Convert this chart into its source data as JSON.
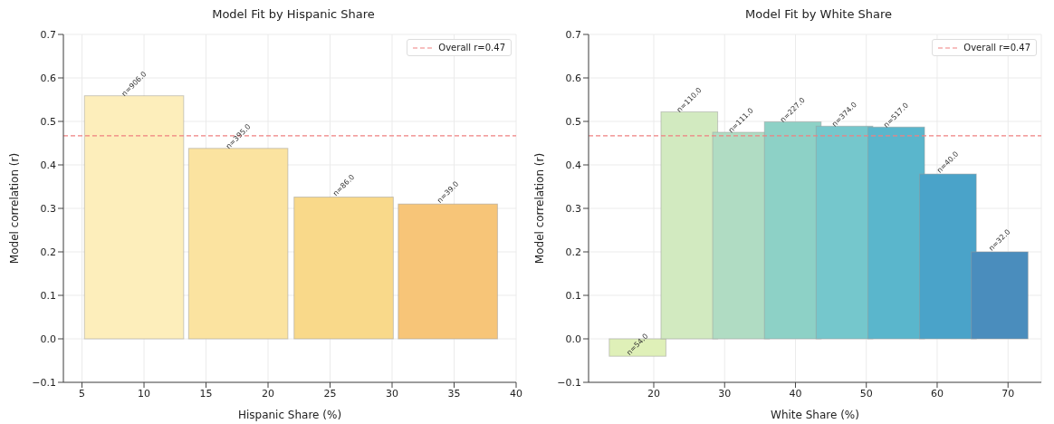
{
  "chart_data": [
    {
      "type": "bar",
      "title": "Model Fit by Hispanic Share",
      "xlabel": "Hispanic Share (%)",
      "ylabel": "Model correlation (r)",
      "x": [
        9.2,
        17.6,
        26.1,
        34.5
      ],
      "values": [
        0.559,
        0.438,
        0.326,
        0.31
      ],
      "colors": [
        "#fdeebb",
        "#fbe3a0",
        "#f9d98a",
        "#f7c578"
      ],
      "annotations": [
        {
          "text": "n=906.0",
          "x": 9.2,
          "y": 0.559
        },
        {
          "text": "n=395.0",
          "x": 17.6,
          "y": 0.438
        },
        {
          "text": "n=86.0",
          "x": 26.1,
          "y": 0.326
        },
        {
          "text": "n=39.0",
          "x": 34.5,
          "y": 0.31
        }
      ],
      "xlim": [
        3.5,
        40
      ],
      "xticks": [
        5,
        10,
        15,
        20,
        25,
        30,
        35,
        40
      ],
      "ylim": [
        -0.1,
        0.7
      ],
      "yticks": [
        {
          "value": -0.1,
          "label": "−0.1"
        },
        {
          "value": 0,
          "label": "0.0"
        },
        {
          "value": 0.1,
          "label": "0.1"
        },
        {
          "value": 0.2,
          "label": "0.2"
        },
        {
          "value": 0.3,
          "label": "0.3"
        },
        {
          "value": 0.4,
          "label": "0.4"
        },
        {
          "value": 0.5,
          "label": "0.5"
        },
        {
          "value": 0.6,
          "label": "0.6"
        },
        {
          "value": 0.7,
          "label": "0.7"
        }
      ],
      "ref_lines": [
        {
          "axis": "y",
          "value": 0.467,
          "label": "Overall r=0.47",
          "color": "#f08080",
          "line_style": "dashed"
        }
      ],
      "grid": true,
      "legend": "top right"
    },
    {
      "type": "bar",
      "title": "Model Fit by White Share",
      "xlabel": "White Share (%)",
      "ylabel": "Model correlation (r)",
      "x": [
        17.7,
        25.0,
        32.3,
        39.6,
        46.9,
        54.2,
        61.5,
        68.8
      ],
      "values": [
        -0.04,
        0.522,
        0.475,
        0.499,
        0.489,
        0.487,
        0.379,
        0.2
      ],
      "colors": [
        "#dff0b8",
        "#d2eac0",
        "#b0dcc3",
        "#8dd1c6",
        "#75c7cc",
        "#5ab6cc",
        "#4aa3c9",
        "#4a8dbd"
      ],
      "annotations": [
        {
          "text": "n=54.0",
          "x": 17.7,
          "y": -0.04
        },
        {
          "text": "n=110.0",
          "x": 25.0,
          "y": 0.522
        },
        {
          "text": "n=111.0",
          "x": 32.3,
          "y": 0.475
        },
        {
          "text": "n=227.0",
          "x": 39.6,
          "y": 0.499
        },
        {
          "text": "n=374.0",
          "x": 46.9,
          "y": 0.489
        },
        {
          "text": "n=517.0",
          "x": 54.2,
          "y": 0.487
        },
        {
          "text": "n=40.0",
          "x": 61.5,
          "y": 0.379
        },
        {
          "text": "n=32.0",
          "x": 68.8,
          "y": 0.2
        }
      ],
      "xlim": [
        10.8,
        74.7
      ],
      "xticks": [
        20,
        30,
        40,
        50,
        60,
        70
      ],
      "ylim": [
        -0.1,
        0.7
      ],
      "yticks": [
        {
          "value": -0.1,
          "label": "−0.1"
        },
        {
          "value": 0,
          "label": "0.0"
        },
        {
          "value": 0.1,
          "label": "0.1"
        },
        {
          "value": 0.2,
          "label": "0.2"
        },
        {
          "value": 0.3,
          "label": "0.3"
        },
        {
          "value": 0.4,
          "label": "0.4"
        },
        {
          "value": 0.5,
          "label": "0.5"
        },
        {
          "value": 0.6,
          "label": "0.6"
        },
        {
          "value": 0.7,
          "label": "0.7"
        }
      ],
      "ref_lines": [
        {
          "axis": "y",
          "value": 0.467,
          "label": "Overall r=0.47",
          "color": "#f08080",
          "line_style": "dashed"
        }
      ],
      "grid": true,
      "legend": "top right"
    }
  ]
}
